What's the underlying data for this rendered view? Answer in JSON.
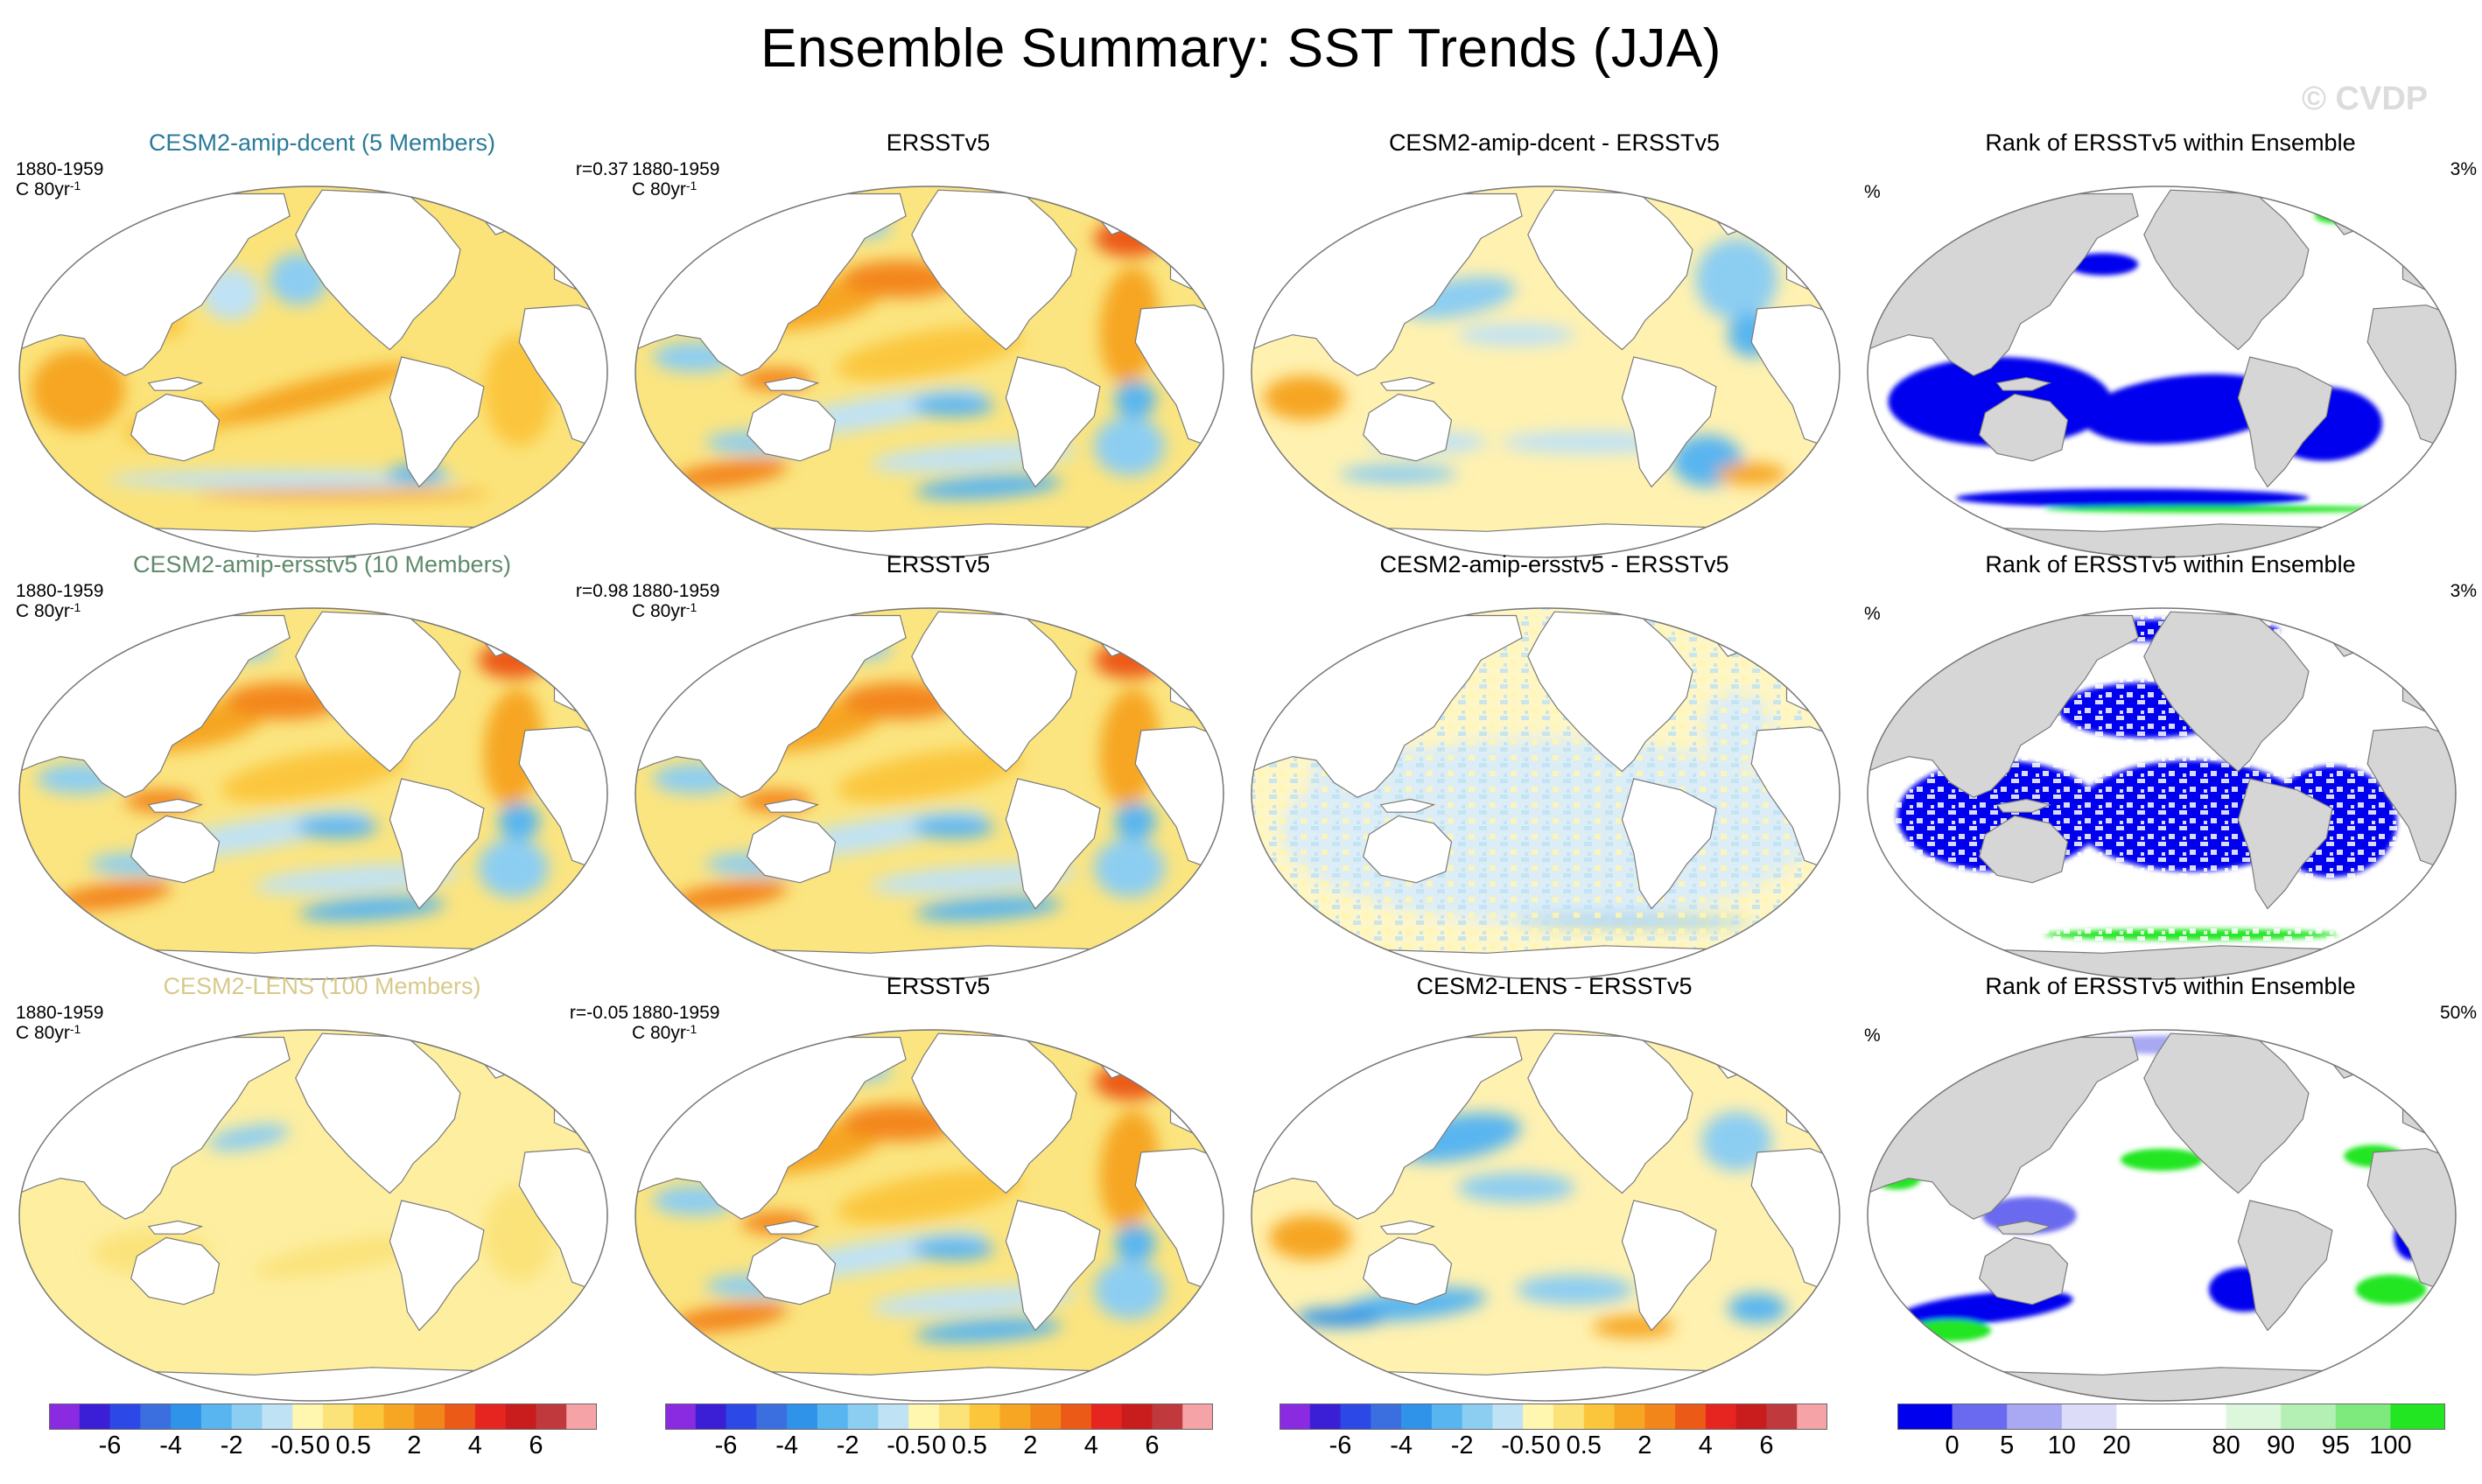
{
  "title": "Ensemble Summary: SST Trends (JJA)",
  "watermark": "© CVDP",
  "rows": [
    {
      "model": {
        "title": "CESM2-amip-dcent (5 Members)",
        "title_color": "#2a7a9a",
        "period": "1880-1959",
        "units": "C 80yr",
        "units_sup": "-1",
        "corr": "r=0.37",
        "style": "model1"
      },
      "obs": {
        "title": "ERSSTv5",
        "period": "1880-1959",
        "units": "C 80yr",
        "units_sup": "-1",
        "style": "obs"
      },
      "diff": {
        "title": "CESM2-amip-dcent - ERSSTv5",
        "style": "diff1"
      },
      "rank": {
        "title": "Rank of ERSSTv5 within Ensemble",
        "unit": "%",
        "value": "3%",
        "style": "rank1"
      }
    },
    {
      "model": {
        "title": "CESM2-amip-ersstv5 (10 Members)",
        "title_color": "#5e8a6a",
        "period": "1880-1959",
        "units": "C 80yr",
        "units_sup": "-1",
        "corr": "r=0.98",
        "style": "obs"
      },
      "obs": {
        "title": "ERSSTv5",
        "period": "1880-1959",
        "units": "C 80yr",
        "units_sup": "-1",
        "style": "obs"
      },
      "diff": {
        "title": "CESM2-amip-ersstv5 - ERSSTv5",
        "style": "diff2"
      },
      "rank": {
        "title": "Rank of ERSSTv5 within Ensemble",
        "unit": "%",
        "value": "3%",
        "style": "rank2"
      }
    },
    {
      "model": {
        "title": "CESM2-LENS (100 Members)",
        "title_color": "#d8c98a",
        "period": "1880-1959",
        "units": "C 80yr",
        "units_sup": "-1",
        "corr": "r=-0.05",
        "style": "model3"
      },
      "obs": {
        "title": "ERSSTv5",
        "period": "1880-1959",
        "units": "C 80yr",
        "units_sup": "-1",
        "style": "obs"
      },
      "diff": {
        "title": "CESM2-LENS - ERSSTv5",
        "style": "diff3"
      },
      "rank": {
        "title": "Rank of ERSSTv5 within Ensemble",
        "unit": "%",
        "value": "50%",
        "style": "rank3"
      }
    }
  ],
  "colorbars": {
    "trend": {
      "colors": [
        "#8a2be2",
        "#3b1fd6",
        "#2c48e6",
        "#3b6fe0",
        "#2f93ea",
        "#58b5f0",
        "#8ccdf2",
        "#bfe2f5",
        "#fff6b0",
        "#fbe37a",
        "#fbc63c",
        "#f6a623",
        "#f3861a",
        "#ec5a18",
        "#e62520",
        "#c91c1c",
        "#c0393c",
        "#f6a3a8"
      ],
      "labels": [
        "-6",
        "-4",
        "-2",
        "-0.5",
        "0",
        "0.5",
        "2",
        "4",
        "6"
      ]
    },
    "rank": {
      "colors": [
        "#0000ee",
        "#6a6af0",
        "#a8a8f3",
        "#dcdcf8",
        "#ffffff",
        "#ffffff",
        "#dcf7dc",
        "#b4f0b4",
        "#7eea7e",
        "#22e622"
      ],
      "labels": [
        "0",
        "5",
        "10",
        "20",
        "80",
        "90",
        "95",
        "100"
      ]
    }
  }
}
